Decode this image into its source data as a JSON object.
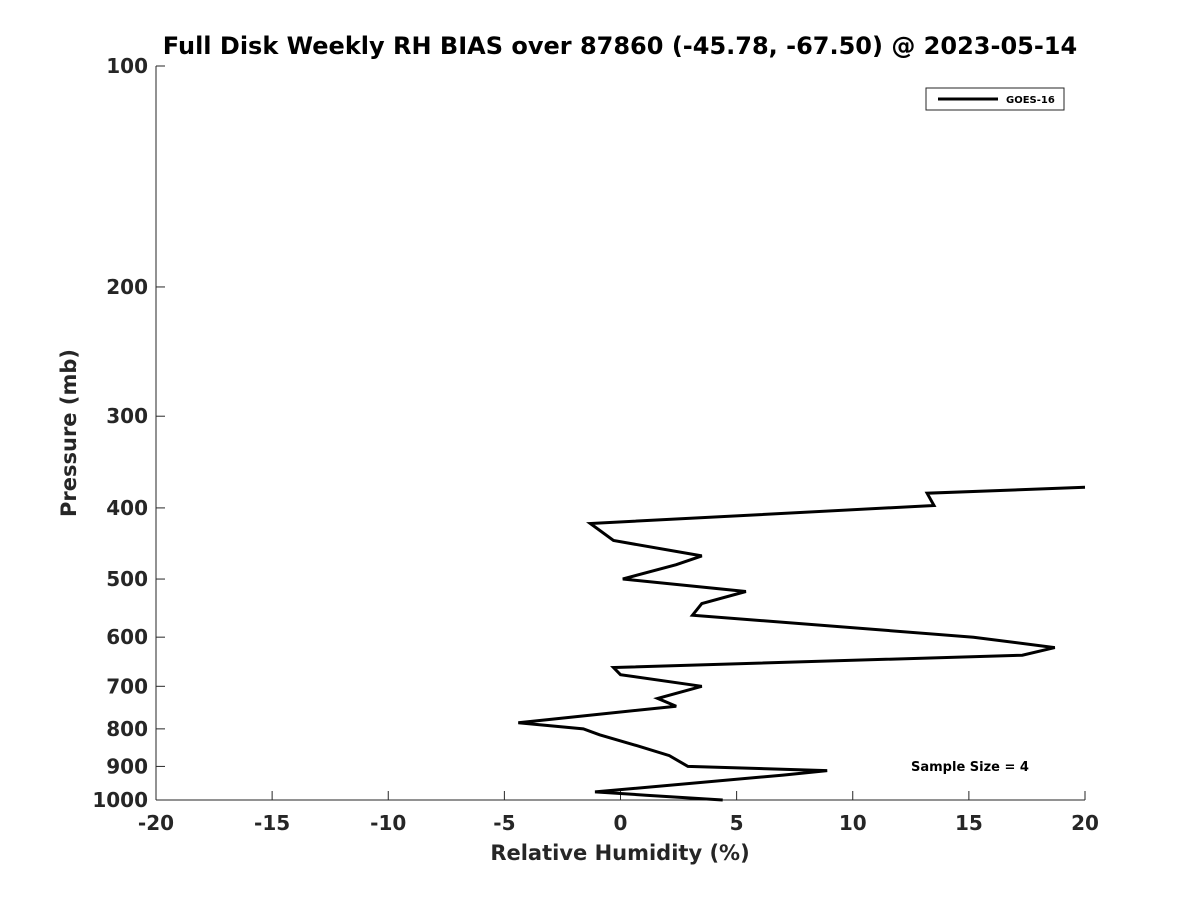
{
  "chart_data": {
    "type": "line",
    "title": "Full Disk Weekly RH BIAS over 87860 (-45.78, -67.50) @ 2023-05-14",
    "xlabel": "Relative Humidity (%)",
    "ylabel": "Pressure (mb)",
    "xlim": [
      -20,
      20
    ],
    "ylim": [
      100,
      1000
    ],
    "y_scale": "log",
    "y_reversed": true,
    "x_ticks": [
      -20,
      -15,
      -10,
      -5,
      0,
      5,
      10,
      15,
      20
    ],
    "x_tick_labels": [
      "-20",
      "-15",
      "-10",
      "-5",
      "0",
      "5",
      "10",
      "15",
      "20"
    ],
    "y_ticks": [
      100,
      200,
      300,
      400,
      500,
      600,
      700,
      800,
      900,
      1000
    ],
    "y_tick_labels": [
      "100",
      "200",
      "300",
      "400",
      "500",
      "600",
      "700",
      "800",
      "900",
      "1000"
    ],
    "grid": false,
    "legend": {
      "position": "top-right",
      "entries": [
        {
          "name": "GOES-16",
          "color": "#000000"
        }
      ]
    },
    "annotations": [
      {
        "text": "Sample Size = 4"
      }
    ],
    "series": [
      {
        "name": "GOES-16",
        "color": "#000000",
        "points": [
          {
            "x": 20.0,
            "y": 375
          },
          {
            "x": 13.2,
            "y": 382
          },
          {
            "x": 13.5,
            "y": 397
          },
          {
            "x": -1.3,
            "y": 420
          },
          {
            "x": -0.3,
            "y": 443
          },
          {
            "x": 3.5,
            "y": 465
          },
          {
            "x": 2.4,
            "y": 478
          },
          {
            "x": 0.1,
            "y": 500
          },
          {
            "x": 5.4,
            "y": 520
          },
          {
            "x": 3.5,
            "y": 540
          },
          {
            "x": 3.1,
            "y": 560
          },
          {
            "x": 15.2,
            "y": 600
          },
          {
            "x": 18.7,
            "y": 620
          },
          {
            "x": 17.3,
            "y": 635
          },
          {
            "x": -0.3,
            "y": 660
          },
          {
            "x": 0.0,
            "y": 675
          },
          {
            "x": 3.5,
            "y": 700
          },
          {
            "x": 1.6,
            "y": 727
          },
          {
            "x": 2.4,
            "y": 745
          },
          {
            "x": -4.4,
            "y": 785
          },
          {
            "x": -1.6,
            "y": 800
          },
          {
            "x": -0.9,
            "y": 815
          },
          {
            "x": 0.8,
            "y": 845
          },
          {
            "x": 2.1,
            "y": 870
          },
          {
            "x": 2.9,
            "y": 900
          },
          {
            "x": 8.9,
            "y": 912
          },
          {
            "x": 7.0,
            "y": 925
          },
          {
            "x": -1.1,
            "y": 975
          },
          {
            "x": 1.1,
            "y": 985
          },
          {
            "x": 4.4,
            "y": 1000
          }
        ]
      }
    ]
  }
}
